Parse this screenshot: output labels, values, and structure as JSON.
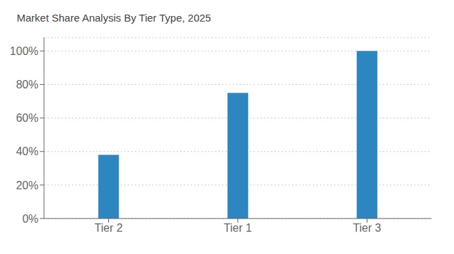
{
  "chart_data": {
    "type": "bar",
    "title": "Market Share Analysis By Tier Type, 2025",
    "categories": [
      "Tier 2",
      "Tier 1",
      "Tier 3"
    ],
    "values": [
      38,
      75,
      100
    ],
    "color": "#2E86C1",
    "ylim": [
      0,
      108
    ],
    "yticks": [
      {
        "value": 0,
        "label": "0%"
      },
      {
        "value": 20,
        "label": "20%"
      },
      {
        "value": 40,
        "label": "40%"
      },
      {
        "value": 60,
        "label": "60%"
      },
      {
        "value": 80,
        "label": "80%"
      },
      {
        "value": 100,
        "label": "100%"
      }
    ],
    "grid": true
  }
}
